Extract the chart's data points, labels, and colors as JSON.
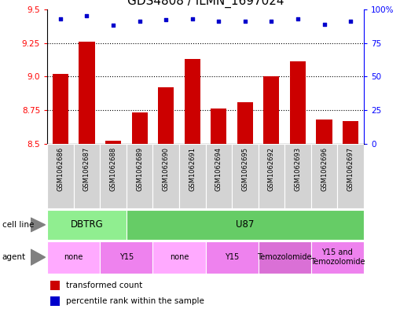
{
  "title": "GDS4808 / ILMN_1697024",
  "samples": [
    "GSM1062686",
    "GSM1062687",
    "GSM1062688",
    "GSM1062689",
    "GSM1062690",
    "GSM1062691",
    "GSM1062694",
    "GSM1062695",
    "GSM1062692",
    "GSM1062693",
    "GSM1062696",
    "GSM1062697"
  ],
  "red_values": [
    9.02,
    9.26,
    8.52,
    8.73,
    8.92,
    9.13,
    8.76,
    8.81,
    9.0,
    9.11,
    8.68,
    8.67
  ],
  "blue_values": [
    93,
    95,
    88,
    91,
    92,
    93,
    91,
    91,
    91,
    93,
    89,
    91
  ],
  "ylim_left": [
    8.5,
    9.5
  ],
  "ylim_right": [
    0,
    100
  ],
  "yticks_left": [
    8.5,
    8.75,
    9.0,
    9.25,
    9.5
  ],
  "yticks_right": [
    0,
    25,
    50,
    75,
    100
  ],
  "cell_line_groups": [
    {
      "label": "DBTRG",
      "start": 0,
      "end": 3,
      "color": "#90EE90"
    },
    {
      "label": "U87",
      "start": 3,
      "end": 12,
      "color": "#66CC66"
    }
  ],
  "agent_groups": [
    {
      "label": "none",
      "start": 0,
      "end": 2,
      "color": "#FFAAFF"
    },
    {
      "label": "Y15",
      "start": 2,
      "end": 4,
      "color": "#EE82EE"
    },
    {
      "label": "none",
      "start": 4,
      "end": 6,
      "color": "#FFAAFF"
    },
    {
      "label": "Y15",
      "start": 6,
      "end": 8,
      "color": "#EE82EE"
    },
    {
      "label": "Temozolomide",
      "start": 8,
      "end": 10,
      "color": "#DA70D6"
    },
    {
      "label": "Y15 and\nTemozolomide",
      "start": 10,
      "end": 12,
      "color": "#EE82EE"
    }
  ],
  "bar_color": "#CC0000",
  "dot_color": "#0000CC",
  "background_color": "#ffffff",
  "plot_bg_color": "#ffffff",
  "title_fontsize": 11,
  "tick_fontsize": 7.5,
  "sample_fontsize": 6,
  "label_fontsize": 8
}
